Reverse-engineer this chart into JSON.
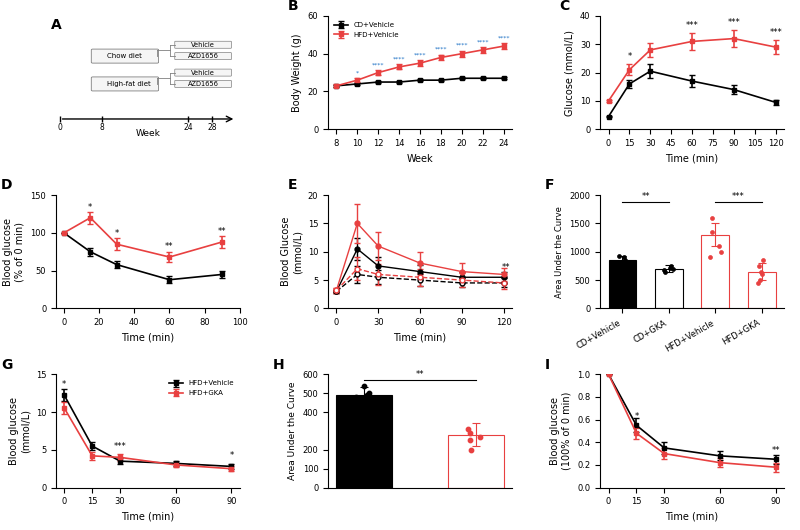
{
  "panel_B": {
    "weeks": [
      8,
      10,
      12,
      14,
      16,
      18,
      20,
      22,
      24
    ],
    "cd_vehicle": [
      23,
      24,
      25,
      25,
      26,
      26,
      27,
      27,
      27
    ],
    "cd_vehicle_err": [
      0.5,
      0.5,
      0.5,
      0.5,
      0.5,
      0.6,
      0.6,
      0.6,
      0.6
    ],
    "hfd_vehicle": [
      23,
      26,
      30,
      33,
      35,
      38,
      40,
      42,
      44
    ],
    "hfd_vehicle_err": [
      0.8,
      1.0,
      1.2,
      1.3,
      1.4,
      1.5,
      1.5,
      1.6,
      1.7
    ],
    "sig_cd": [
      "",
      "*",
      "****",
      "****",
      "****",
      "****",
      "****",
      "****",
      "****"
    ],
    "xlabel": "Week",
    "ylabel": "Body Weight (g)",
    "ylim": [
      0,
      60
    ],
    "yticks": [
      0,
      20,
      40,
      60
    ]
  },
  "panel_C": {
    "times": [
      0,
      15,
      30,
      60,
      90,
      120
    ],
    "cd_vehicle": [
      4.5,
      16,
      20.5,
      17,
      14,
      9.5
    ],
    "cd_vehicle_err": [
      0.3,
      1.5,
      2.5,
      2.0,
      1.5,
      1.0
    ],
    "hfd_vehicle": [
      10,
      21,
      28,
      31,
      32,
      29
    ],
    "hfd_vehicle_err": [
      0.5,
      2.0,
      2.5,
      3.0,
      3.0,
      2.5
    ],
    "sig": [
      "",
      "*",
      "",
      "***",
      "***",
      "***"
    ],
    "xlabel": "Time (min)",
    "ylabel": "Glucose (mmol/L)",
    "ylim": [
      0,
      40
    ],
    "yticks": [
      0,
      10,
      20,
      30,
      40
    ],
    "xticks": [
      0,
      15,
      30,
      45,
      60,
      75,
      90,
      105,
      120
    ]
  },
  "panel_D": {
    "times": [
      0,
      15,
      30,
      60,
      90
    ],
    "cd_vehicle": [
      100,
      75,
      58,
      38,
      45
    ],
    "cd_vehicle_err": [
      0,
      5,
      5,
      5,
      5
    ],
    "hfd_vehicle": [
      100,
      120,
      85,
      68,
      88
    ],
    "hfd_vehicle_err": [
      0,
      8,
      8,
      7,
      8
    ],
    "sig": [
      "",
      "*",
      "*",
      "**",
      "**"
    ],
    "xlabel": "Time (min)",
    "ylabel": "Blood glucose\n(% of 0 min)",
    "ylim": [
      0,
      150
    ],
    "yticks": [
      0,
      50,
      100,
      150
    ],
    "xticks": [
      0,
      20,
      40,
      60,
      80,
      100
    ]
  },
  "panel_E": {
    "times": [
      0,
      15,
      30,
      60,
      90,
      120
    ],
    "cd_vehicle": [
      3.0,
      10.5,
      7.5,
      6.5,
      5.5,
      5.5
    ],
    "cd_vehicle_err": [
      0.3,
      2.0,
      1.5,
      1.2,
      1.0,
      1.0
    ],
    "cd_gka": [
      3.0,
      6.0,
      5.5,
      5.0,
      4.5,
      4.5
    ],
    "cd_gka_err": [
      0.3,
      1.5,
      1.2,
      1.0,
      0.8,
      0.8
    ],
    "hfd_vehicle": [
      3.2,
      15.0,
      11.0,
      8.0,
      6.5,
      6.0
    ],
    "hfd_vehicle_err": [
      0.4,
      3.5,
      2.5,
      2.0,
      1.5,
      1.2
    ],
    "hfd_gka": [
      3.2,
      7.0,
      6.0,
      5.5,
      5.0,
      4.5
    ],
    "hfd_gka_err": [
      0.4,
      2.0,
      1.8,
      1.5,
      1.2,
      1.0
    ],
    "xlabel": "Time (min)",
    "ylabel": "Blood Glucose\n(mmol/L)",
    "ylim": [
      0,
      20
    ],
    "yticks": [
      0,
      5,
      10,
      15,
      20
    ],
    "xticks": [
      0,
      30,
      60,
      90,
      120
    ]
  },
  "panel_F": {
    "categories": [
      "CD+Vehicle",
      "CD+GKA",
      "HFD+Vehicle",
      "HFD+GKA"
    ],
    "means": [
      850,
      700,
      1300,
      650
    ],
    "errors": [
      80,
      60,
      200,
      150
    ],
    "dots_cd_vehicle": [
      780,
      820,
      860,
      900,
      930
    ],
    "dots_cd_gka": [
      640,
      680,
      700,
      720,
      750
    ],
    "dots_hfd_vehicle": [
      900,
      1000,
      1100,
      1350,
      1600
    ],
    "dots_hfd_gka": [
      450,
      500,
      600,
      650,
      750,
      850
    ],
    "ylabel": "Area Under the Curve",
    "ylim": [
      0,
      2000
    ],
    "yticks": [
      0,
      500,
      1000,
      1500,
      2000
    ]
  },
  "panel_G": {
    "times": [
      0,
      15,
      30,
      60,
      90
    ],
    "hfd_vehicle": [
      12.2,
      5.5,
      3.5,
      3.2,
      2.8
    ],
    "hfd_vehicle_err": [
      0.8,
      0.5,
      0.4,
      0.3,
      0.3
    ],
    "hfd_gka": [
      10.5,
      4.2,
      4.0,
      3.0,
      2.5
    ],
    "hfd_gka_err": [
      0.8,
      0.5,
      0.5,
      0.3,
      0.3
    ],
    "sig": [
      "*",
      "",
      "***",
      "",
      "*"
    ],
    "xlabel": "Time (min)",
    "ylabel": "Blood glucose\n(mmol/L)",
    "ylim": [
      0,
      15
    ],
    "yticks": [
      0,
      5,
      10,
      15
    ],
    "xticks": [
      0,
      15,
      30,
      60,
      90
    ]
  },
  "panel_H": {
    "means": [
      490,
      280
    ],
    "errors": [
      40,
      60
    ],
    "dots_hfd_vehicle": [
      450,
      480,
      490,
      500,
      540
    ],
    "dots_hfd_gka": [
      200,
      250,
      270,
      290,
      310
    ],
    "ylabel": "Area Under the Curve",
    "ylim": [
      0,
      600
    ],
    "yticks": [
      0,
      100,
      200,
      400,
      500,
      600
    ]
  },
  "panel_I": {
    "times": [
      0,
      15,
      30,
      60,
      90
    ],
    "hfd_vehicle": [
      1.0,
      0.55,
      0.35,
      0.28,
      0.25
    ],
    "hfd_vehicle_err": [
      0,
      0.06,
      0.05,
      0.04,
      0.04
    ],
    "hfd_gka": [
      1.0,
      0.48,
      0.3,
      0.22,
      0.18
    ],
    "hfd_gka_err": [
      0,
      0.05,
      0.05,
      0.04,
      0.04
    ],
    "sig": [
      "",
      "*",
      "",
      "",
      "**"
    ],
    "xlabel": "Time (min)",
    "ylabel": "Blood glucose\n(100% of 0 min)",
    "ylim": [
      0,
      1.0
    ],
    "yticks": [
      0.0,
      0.2,
      0.4,
      0.6,
      0.8,
      1.0
    ]
  },
  "colors": {
    "black": "#000000",
    "red": "#E84040"
  }
}
